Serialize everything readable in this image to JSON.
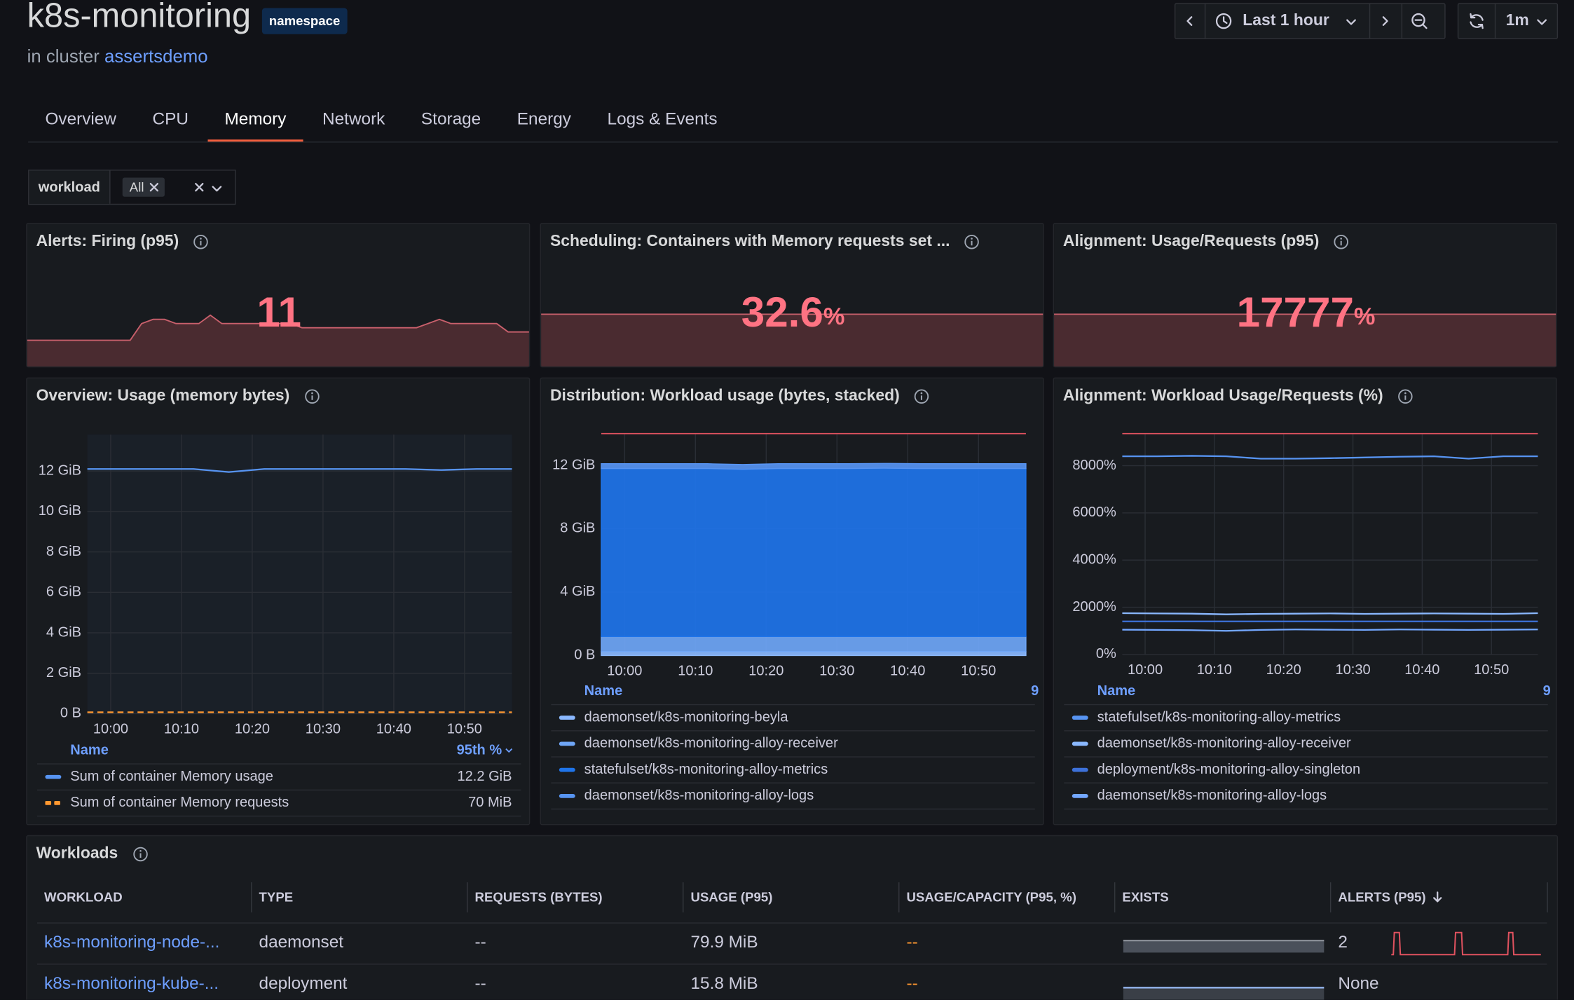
{
  "header": {
    "title": "k8s-monitoring",
    "badge": "namespace",
    "subtitle": "in cluster",
    "cluster": "assertsdemo"
  },
  "controls": {
    "time_range": "Last 1 hour",
    "refresh": "1m"
  },
  "tabs": {
    "items": [
      "Overview",
      "CPU",
      "Memory",
      "Network",
      "Storage",
      "Energy",
      "Logs & Events"
    ],
    "active": 2
  },
  "filter": {
    "label": "workload",
    "value": "All"
  },
  "stats": [
    {
      "title": "Alerts: Firing (p95)",
      "value": 11,
      "color": "#ff7383",
      "sparkline": [
        4,
        4,
        4,
        4,
        4,
        4,
        4,
        4,
        4,
        4,
        8,
        9,
        9,
        8,
        8,
        8,
        10,
        8,
        8,
        8,
        8,
        8,
        8,
        8,
        7,
        7,
        7,
        7,
        7,
        7,
        7,
        7,
        7,
        7,
        7,
        8,
        9,
        8,
        8,
        8,
        8,
        8,
        6,
        6,
        6
      ]
    },
    {
      "title": "Scheduling: Containers with Memory requests set ...",
      "value": 32.6,
      "unit": "%",
      "color": "#ff7383"
    },
    {
      "title": "Alignment: Usage/Requests (p95)",
      "value": 17777,
      "unit": "%",
      "color": "#ff7383"
    }
  ],
  "chart_data": [
    {
      "type": "line",
      "title": "Overview: Usage (memory bytes)",
      "x": [
        -3.3,
        1.7,
        6.7,
        11.7,
        16.7,
        21.7,
        26.7,
        31.7,
        36.7,
        41.7,
        46.7,
        51.7,
        56.7
      ],
      "xlim": [
        -3.3,
        56.7
      ],
      "xticks": [
        {
          "value": 0,
          "label": "10:00"
        },
        {
          "value": 10,
          "label": "10:10"
        },
        {
          "value": 20,
          "label": "10:20"
        },
        {
          "value": 30,
          "label": "10:30"
        },
        {
          "value": 40,
          "label": "10:40"
        },
        {
          "value": 50,
          "label": "10:50"
        }
      ],
      "ylim": [
        0,
        13.8
      ],
      "yticks": [
        {
          "value": 0,
          "label": "0 B"
        },
        {
          "value": 2,
          "label": "2 GiB"
        },
        {
          "value": 4,
          "label": "4 GiB"
        },
        {
          "value": 6,
          "label": "6 GiB"
        },
        {
          "value": 8,
          "label": "8 GiB"
        },
        {
          "value": 10,
          "label": "10 GiB"
        },
        {
          "value": 12,
          "label": "12 GiB"
        }
      ],
      "grid": true,
      "legend_columns": [
        "Name",
        "95th %"
      ],
      "series": [
        {
          "name": "Sum of container Memory usage",
          "color": "#5794f2",
          "legend_value": "12.2 GiB",
          "values": [
            12.1,
            12.1,
            12.1,
            12.1,
            11.95,
            12.1,
            12.1,
            12.1,
            12.1,
            12.1,
            12.05,
            12.1,
            12.1
          ]
        },
        {
          "name": "Sum of container Memory requests",
          "color": "#ff9830",
          "dash": true,
          "legend_value": "70 MiB",
          "values": [
            0.07,
            0.07,
            0.07,
            0.07,
            0.07,
            0.07,
            0.07,
            0.07,
            0.07,
            0.07,
            0.07,
            0.07,
            0.07
          ]
        }
      ]
    },
    {
      "type": "area",
      "stacked": true,
      "title": "Distribution: Workload usage (bytes, stacked)",
      "x": [
        -3.3,
        1.7,
        6.7,
        11.7,
        16.7,
        21.7,
        26.7,
        31.7,
        36.7,
        41.7,
        46.7,
        51.7,
        56.7
      ],
      "xlim": [
        -3.3,
        56.7
      ],
      "xticks": [
        {
          "value": 0,
          "label": "10:00"
        },
        {
          "value": 10,
          "label": "10:10"
        },
        {
          "value": 20,
          "label": "10:20"
        },
        {
          "value": 30,
          "label": "10:30"
        },
        {
          "value": 40,
          "label": "10:40"
        },
        {
          "value": 50,
          "label": "10:50"
        }
      ],
      "ylim": [
        0,
        14
      ],
      "yticks": [
        {
          "value": 0,
          "label": "0 B"
        },
        {
          "value": 4,
          "label": "4 GiB"
        },
        {
          "value": 8,
          "label": "8 GiB"
        },
        {
          "value": 12,
          "label": "12 GiB"
        }
      ],
      "grid": true,
      "threshold": 14,
      "threshold_color": "#e0525f",
      "legend_columns": [
        "Name",
        "9"
      ],
      "series": [
        {
          "name": "daemonset/k8s-monitoring-beyla",
          "color": "#8ab8ff",
          "values": [
            0.25,
            0.25,
            0.25,
            0.25,
            0.25,
            0.25,
            0.25,
            0.25,
            0.25,
            0.25,
            0.25,
            0.25,
            0.25
          ]
        },
        {
          "name": "daemonset/k8s-monitoring-alloy-receiver",
          "color": "#6fa6f7",
          "values": [
            0.95,
            0.95,
            0.95,
            0.95,
            0.95,
            0.95,
            0.95,
            0.95,
            0.95,
            0.95,
            0.95,
            0.95,
            0.95
          ]
        },
        {
          "name": "statefulset/k8s-monitoring-alloy-metrics",
          "color": "#1f74ea",
          "values": [
            10.6,
            10.6,
            10.6,
            10.6,
            10.55,
            10.6,
            10.6,
            10.6,
            10.62,
            10.6,
            10.6,
            10.6,
            10.6
          ]
        },
        {
          "name": "daemonset/k8s-monitoring-alloy-logs",
          "color": "#5794f2",
          "values": [
            0.3,
            0.3,
            0.3,
            0.3,
            0.3,
            0.3,
            0.3,
            0.3,
            0.3,
            0.3,
            0.3,
            0.3,
            0.3
          ]
        }
      ]
    },
    {
      "type": "line",
      "title": "Alignment: Workload Usage/Requests (%)",
      "x": [
        -3.3,
        1.7,
        6.7,
        11.7,
        16.7,
        21.7,
        26.7,
        31.7,
        36.7,
        41.7,
        46.7,
        51.7,
        56.7
      ],
      "xlim": [
        -3.3,
        56.7
      ],
      "xticks": [
        {
          "value": 0,
          "label": "10:00"
        },
        {
          "value": 10,
          "label": "10:10"
        },
        {
          "value": 20,
          "label": "10:20"
        },
        {
          "value": 30,
          "label": "10:30"
        },
        {
          "value": 40,
          "label": "10:40"
        },
        {
          "value": 50,
          "label": "10:50"
        }
      ],
      "ylim": [
        0,
        9360
      ],
      "yticks": [
        {
          "value": 0,
          "label": "0%"
        },
        {
          "value": 2000,
          "label": "2000%"
        },
        {
          "value": 4000,
          "label": "4000%"
        },
        {
          "value": 6000,
          "label": "6000%"
        },
        {
          "value": 8000,
          "label": "8000%"
        }
      ],
      "grid": true,
      "threshold": 9360,
      "threshold_color": "#e0525f",
      "legend_columns": [
        "Name",
        "9"
      ],
      "series": [
        {
          "name": "statefulset/k8s-monitoring-alloy-metrics",
          "color": "#5794f2",
          "values": [
            8400,
            8400,
            8420,
            8400,
            8300,
            8300,
            8320,
            8350,
            8380,
            8400,
            8300,
            8400,
            8400
          ]
        },
        {
          "name": "daemonset/k8s-monitoring-alloy-receiver",
          "color": "#8ab8ff",
          "values": [
            1750,
            1740,
            1730,
            1700,
            1720,
            1730,
            1740,
            1720,
            1730,
            1740,
            1730,
            1720,
            1750
          ]
        },
        {
          "name": "deployment/k8s-monitoring-alloy-singleton",
          "color": "#3d71d9",
          "values": [
            1400,
            1400,
            1400,
            1400,
            1400,
            1400,
            1400,
            1400,
            1400,
            1400,
            1400,
            1400,
            1400
          ]
        },
        {
          "name": "daemonset/k8s-monitoring-alloy-logs",
          "color": "#73a7ff",
          "values": [
            1050,
            1040,
            1030,
            1000,
            1040,
            1060,
            1050,
            1040,
            1060,
            1050,
            1040,
            1050,
            1060
          ]
        }
      ]
    }
  ],
  "workloads": {
    "title": "Workloads",
    "columns": [
      "WORKLOAD",
      "TYPE",
      "REQUESTS (BYTES)",
      "USAGE (P95)",
      "USAGE/CAPACITY (P95, %)",
      "EXISTS",
      "ALERTS (P95)"
    ],
    "rows": [
      {
        "workload": "k8s-monitoring-node-...",
        "type": "daemonset",
        "requests": "--",
        "usage": "79.9 MiB",
        "usage_capacity": "--",
        "alerts": 2
      },
      {
        "workload": "k8s-monitoring-kube-...",
        "type": "deployment",
        "requests": "--",
        "usage": "15.8 MiB",
        "usage_capacity": "--",
        "alerts": "None"
      }
    ]
  }
}
